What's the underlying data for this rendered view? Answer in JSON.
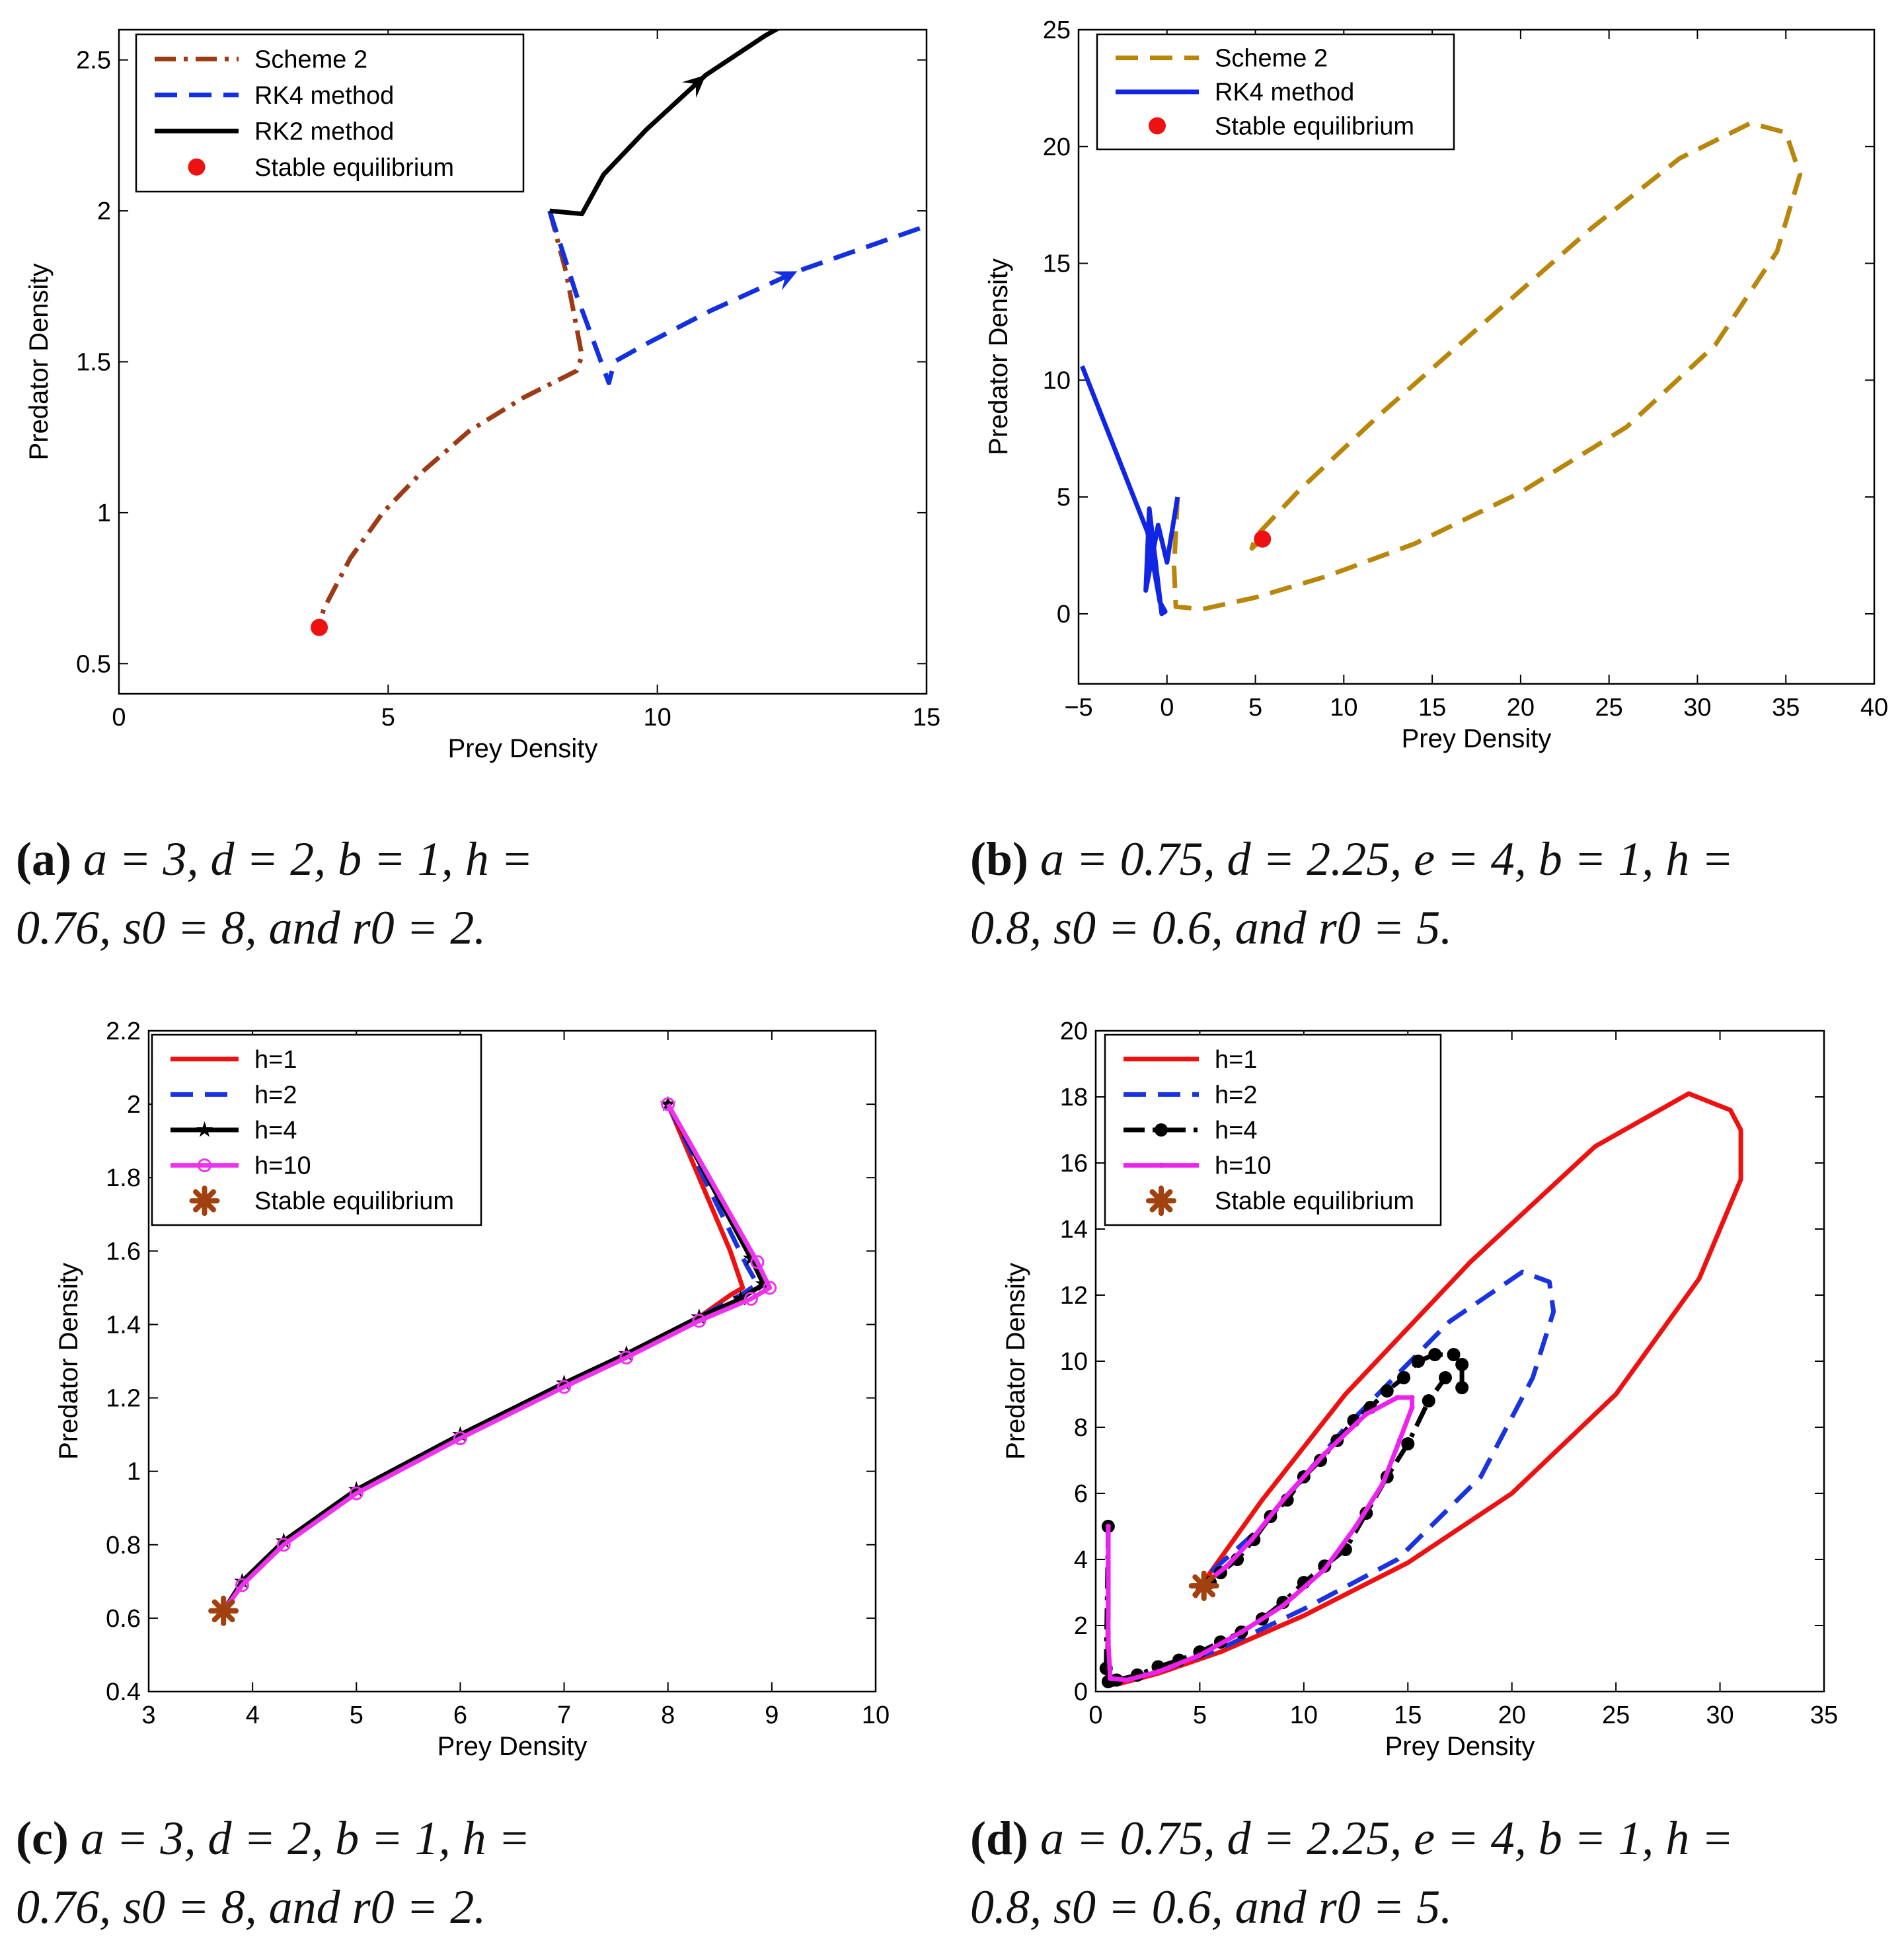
{
  "chart_data": [
    {
      "id": "a",
      "type": "line",
      "xlabel": "Prey Density",
      "ylabel": "Predator Density",
      "xlim": [
        0,
        15
      ],
      "ylim": [
        0.4,
        2.6
      ],
      "xticks": [
        0,
        5,
        10,
        15
      ],
      "yticks": [
        0.5,
        1,
        1.5,
        2,
        2.5
      ],
      "ytick_labels": [
        "0.5",
        "1",
        "1.5",
        "2",
        "2.5"
      ],
      "legend_position": "top-left",
      "series": [
        {
          "name": "Scheme 2",
          "color": "#9c3c16",
          "style": "dashdot",
          "x": [
            8.0,
            8.3,
            8.6,
            8.5,
            7.5,
            6.5,
            5.6,
            4.9,
            4.3,
            3.8,
            3.72
          ],
          "y": [
            2.0,
            1.8,
            1.52,
            1.47,
            1.38,
            1.27,
            1.13,
            1.0,
            0.85,
            0.68,
            0.62
          ]
        },
        {
          "name": "RK4 method",
          "color": "#1230e0",
          "style": "dashed",
          "x": [
            8.0,
            8.5,
            9.1,
            9.2,
            9.8,
            11.0,
            12.6,
            15.0
          ],
          "y": [
            2.0,
            1.72,
            1.43,
            1.5,
            1.56,
            1.67,
            1.8,
            1.95
          ]
        },
        {
          "name": "RK2 method",
          "color": "#000000",
          "style": "solid",
          "x": [
            8.0,
            8.6,
            9.0,
            9.8,
            10.9,
            12.0,
            12.4
          ],
          "y": [
            2.0,
            1.99,
            2.12,
            2.27,
            2.45,
            2.58,
            2.62
          ]
        }
      ],
      "equilibrium": {
        "name": "Stable equilibrium",
        "color": "#ee1111",
        "marker": "dot",
        "x": 3.72,
        "y": 0.62
      },
      "arrows": [
        {
          "series": "RK2 method",
          "x1": 10.4,
          "y1": 2.37,
          "x2": 10.9,
          "y2": 2.45
        },
        {
          "series": "RK4 method",
          "x1": 11.9,
          "y1": 1.74,
          "x2": 12.6,
          "y2": 1.8
        }
      ]
    },
    {
      "id": "b",
      "type": "line",
      "xlabel": "Prey Density",
      "ylabel": "Predator Density",
      "xlim": [
        -5,
        40
      ],
      "ylim": [
        -3,
        25
      ],
      "xticks": [
        -5,
        0,
        5,
        10,
        15,
        20,
        25,
        30,
        35,
        40
      ],
      "xtick_labels": [
        "−5",
        "0",
        "5",
        "10",
        "15",
        "20",
        "25",
        "30",
        "35",
        "40"
      ],
      "yticks": [
        0,
        5,
        10,
        15,
        20,
        25
      ],
      "legend_position": "top-left",
      "series": [
        {
          "name": "Scheme 2",
          "color": "#b8860b",
          "style": "dashed",
          "x": [
            0.6,
            0.4,
            0.5,
            2.0,
            5.0,
            9.0,
            14.0,
            20.0,
            26.0,
            31.0,
            34.5,
            35.8,
            35.0,
            33.0,
            29.0,
            24.0,
            18.0,
            12.0,
            7.5,
            5.0,
            4.8,
            5.4
          ],
          "y": [
            5.0,
            2.0,
            0.3,
            0.2,
            0.7,
            1.6,
            3.0,
            5.2,
            8.0,
            11.5,
            15.5,
            18.8,
            20.6,
            21.0,
            19.5,
            16.5,
            12.5,
            8.5,
            5.3,
            3.3,
            2.8,
            3.2
          ]
        },
        {
          "name": "RK4 method",
          "color": "#1125e5",
          "style": "solid",
          "x": [
            0.6,
            0.0,
            -0.5,
            -1.2,
            -1.0,
            -0.3,
            -0.1,
            -0.4,
            -1.1,
            -4.8
          ],
          "y": [
            5.0,
            2.2,
            3.8,
            1.0,
            4.5,
            0.0,
            0.1,
            0.5,
            3.5,
            10.6
          ]
        }
      ],
      "equilibrium": {
        "name": "Stable equilibrium",
        "color": "#ee1111",
        "marker": "dot",
        "x": 5.4,
        "y": 3.2
      },
      "arrows": []
    },
    {
      "id": "c",
      "type": "line",
      "xlabel": "Prey Density",
      "ylabel": "Predator Density",
      "xlim": [
        3,
        10
      ],
      "ylim": [
        0.4,
        2.2
      ],
      "xticks": [
        3,
        4,
        5,
        6,
        7,
        8,
        9,
        10
      ],
      "yticks": [
        0.4,
        0.6,
        0.8,
        1,
        1.2,
        1.4,
        1.6,
        1.8,
        2,
        2.2
      ],
      "ytick_labels": [
        "0.4",
        "0.6",
        "0.8",
        "1",
        "1.2",
        "1.4",
        "1.6",
        "1.8",
        "2",
        "2.2"
      ],
      "legend_position": "top-left",
      "series": [
        {
          "name": "h=1",
          "color": "#ee1111",
          "style": "solid",
          "marker": "none",
          "x": [
            8.0,
            8.6,
            8.72,
            8.6,
            8.3,
            7.6,
            7.0,
            6.0,
            5.0,
            4.3,
            3.9,
            3.72
          ],
          "y": [
            2.0,
            1.6,
            1.5,
            1.48,
            1.42,
            1.32,
            1.24,
            1.1,
            0.95,
            0.81,
            0.7,
            0.62
          ]
        },
        {
          "name": "h=2",
          "color": "#1a33e0",
          "style": "dashed",
          "marker": "none",
          "x": [
            8.0,
            8.76,
            8.86,
            8.7,
            8.3,
            7.6,
            7.0,
            6.0,
            5.0,
            4.3,
            3.9,
            3.72
          ],
          "y": [
            2.0,
            1.56,
            1.51,
            1.48,
            1.42,
            1.32,
            1.24,
            1.1,
            0.95,
            0.81,
            0.7,
            0.62
          ]
        },
        {
          "name": "h=4",
          "color": "#000000",
          "style": "solid",
          "marker": "star",
          "x": [
            8.0,
            8.8,
            8.92,
            8.7,
            8.3,
            7.6,
            7.0,
            6.0,
            5.0,
            4.3,
            3.9,
            3.72
          ],
          "y": [
            2.0,
            1.58,
            1.51,
            1.47,
            1.42,
            1.32,
            1.24,
            1.1,
            0.95,
            0.81,
            0.7,
            0.62
          ]
        },
        {
          "name": "h=10",
          "color": "#ee33ee",
          "style": "solid",
          "marker": "circle",
          "x": [
            8.0,
            8.86,
            8.98,
            8.8,
            8.3,
            7.6,
            7.0,
            6.0,
            5.0,
            4.3,
            3.9,
            3.72
          ],
          "y": [
            2.0,
            1.57,
            1.5,
            1.47,
            1.41,
            1.31,
            1.23,
            1.09,
            0.94,
            0.8,
            0.69,
            0.62
          ]
        }
      ],
      "equilibrium": {
        "name": "Stable equilibrium",
        "color": "#a0410f",
        "marker": "asterisk",
        "x": 3.72,
        "y": 0.62
      },
      "arrows": []
    },
    {
      "id": "d",
      "type": "line",
      "xlabel": "Prey Density",
      "ylabel": "Predator Density",
      "xlim": [
        0,
        35
      ],
      "ylim": [
        0,
        20
      ],
      "xticks": [
        0,
        5,
        10,
        15,
        20,
        25,
        30,
        35
      ],
      "yticks": [
        0,
        2,
        4,
        6,
        8,
        10,
        12,
        14,
        16,
        18,
        20
      ],
      "legend_position": "top-left",
      "series": [
        {
          "name": "h=1",
          "color": "#ee1111",
          "style": "solid",
          "marker": "none",
          "x": [
            0.6,
            0.6,
            0.55,
            0.7,
            1.2,
            3.0,
            6.0,
            10.0,
            15.0,
            20.0,
            25.0,
            29.0,
            31.0,
            31.0,
            30.5,
            28.5,
            24.0,
            18.0,
            12.0,
            8.0,
            5.5,
            4.8,
            5.0
          ],
          "y": [
            5.0,
            2.5,
            0.5,
            0.2,
            0.25,
            0.55,
            1.2,
            2.3,
            3.9,
            6.0,
            9.0,
            12.5,
            15.5,
            17.0,
            17.6,
            18.1,
            16.5,
            13.0,
            9.0,
            5.8,
            3.6,
            2.9,
            3.2
          ]
        },
        {
          "name": "h=2",
          "color": "#1a33e0",
          "style": "dashed",
          "marker": "none",
          "x": [
            0.6,
            0.6,
            0.6,
            1.0,
            3.0,
            6.0,
            10.0,
            14.5,
            18.5,
            21.0,
            22.0,
            21.8,
            20.5,
            17.0,
            12.0,
            8.0,
            5.5,
            5.2
          ],
          "y": [
            5.0,
            2.0,
            0.4,
            0.3,
            0.6,
            1.3,
            2.5,
            4.0,
            6.5,
            9.5,
            11.5,
            12.4,
            12.7,
            11.2,
            8.0,
            5.0,
            3.6,
            3.2
          ]
        },
        {
          "name": "h=4",
          "color": "#000000",
          "style": "dashdot",
          "marker": "dot",
          "x": [
            0.6,
            0.5,
            0.6,
            1.0,
            2.0,
            3.0,
            4.0,
            5.0,
            6.0,
            7.0,
            8.0,
            9.0,
            10.0,
            11.0,
            12.0,
            13.0,
            14.0,
            15.0,
            16.0,
            16.8,
            17.6,
            17.6,
            17.2,
            16.3,
            15.5,
            14.8,
            14.0,
            13.2,
            12.4,
            11.6,
            10.8,
            10.0,
            9.2,
            8.4,
            7.6,
            6.8,
            6.0,
            5.5,
            5.2
          ],
          "y": [
            5.0,
            0.7,
            0.3,
            0.35,
            0.5,
            0.75,
            0.95,
            1.2,
            1.5,
            1.8,
            2.2,
            2.7,
            3.3,
            3.8,
            4.3,
            5.4,
            6.5,
            7.5,
            8.8,
            9.5,
            9.2,
            9.9,
            10.2,
            10.2,
            10.0,
            9.5,
            9.1,
            8.6,
            8.2,
            7.6,
            7.0,
            6.5,
            5.8,
            5.3,
            4.6,
            4.0,
            3.6,
            3.3,
            3.2
          ]
        },
        {
          "name": "h=10",
          "color": "#ee22ee",
          "style": "solid",
          "marker": "smalldot",
          "x": [
            0.6,
            0.6,
            0.7,
            1.5,
            3.0,
            5.0,
            7.0,
            9.0,
            11.0,
            12.5,
            13.8,
            14.6,
            15.2,
            15.2,
            14.5,
            13.0,
            11.0,
            9.0,
            7.5,
            6.3,
            5.5,
            5.2
          ],
          "y": [
            5.0,
            1.5,
            0.4,
            0.35,
            0.6,
            1.1,
            1.8,
            2.6,
            3.7,
            5.0,
            6.3,
            7.6,
            8.6,
            8.9,
            8.9,
            8.4,
            7.2,
            5.8,
            4.6,
            3.8,
            3.4,
            3.2
          ]
        }
      ],
      "equilibrium": {
        "name": "Stable equilibrium",
        "color": "#a0410f",
        "marker": "asterisk",
        "x": 5.2,
        "y": 3.2
      },
      "arrows": []
    }
  ],
  "captions": [
    {
      "label": "(a)",
      "line1": "a = 3, d = 2, b = 1, h =",
      "line2": "0.76, s0 = 8, and r0 = 2."
    },
    {
      "label": "(b)",
      "line1": "a = 0.75, d = 2.25, e = 4, b = 1, h =",
      "line2": "0.8, s0 = 0.6, and r0 = 5."
    },
    {
      "label": "(c)",
      "line1": "a = 3, d = 2, b = 1, h =",
      "line2": "0.76, s0 = 8, and r0 = 2."
    },
    {
      "label": "(d)",
      "line1": "a = 0.75, d = 2.25, e = 4, b = 1, h =",
      "line2": "0.8, s0 = 0.6, and r0 = 5."
    }
  ]
}
